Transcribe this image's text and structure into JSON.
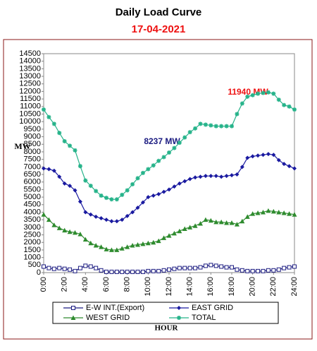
{
  "chart_data": {
    "type": "line",
    "title": "Daily Load Curve",
    "subtitle": "17-04-2021",
    "y_label": "MW",
    "x_label": "HOUR",
    "annotations": [
      {
        "text": "8237 MW",
        "color": "#1a1a80"
      },
      {
        "text": "11940 MW",
        "color": "#ee1111"
      }
    ],
    "x": [
      0,
      0.5,
      1,
      1.5,
      2,
      2.5,
      3,
      3.5,
      4,
      4.5,
      5,
      5.5,
      6,
      6.5,
      7,
      7.5,
      8,
      8.5,
      9,
      9.5,
      10,
      10.5,
      11,
      11.5,
      12,
      12.5,
      13,
      13.5,
      14,
      14.5,
      15,
      15.5,
      16,
      16.5,
      17,
      17.5,
      18,
      18.5,
      19,
      19.5,
      20,
      20.5,
      21,
      21.5,
      22,
      22.5,
      23,
      23.5,
      24
    ],
    "xlim": [
      0,
      24
    ],
    "xticks": [
      {
        "value": 0,
        "label": "0:00"
      },
      {
        "value": 2,
        "label": "2:00"
      },
      {
        "value": 4,
        "label": "4:00"
      },
      {
        "value": 6,
        "label": "6:00"
      },
      {
        "value": 8,
        "label": "8:00"
      },
      {
        "value": 10,
        "label": "10:00"
      },
      {
        "value": 12,
        "label": "12:00"
      },
      {
        "value": 14,
        "label": "14:00"
      },
      {
        "value": 16,
        "label": "16:00"
      },
      {
        "value": 18,
        "label": "18:00"
      },
      {
        "value": 20,
        "label": "20:00"
      },
      {
        "value": 22,
        "label": "22:00"
      },
      {
        "value": 24,
        "label": "24:00"
      }
    ],
    "ylim": [
      0,
      14500
    ],
    "yticks": [
      0,
      500,
      1000,
      1500,
      2000,
      2500,
      3000,
      3500,
      4000,
      4500,
      5000,
      5500,
      6000,
      6500,
      7000,
      7500,
      8000,
      8500,
      9000,
      9500,
      10000,
      10500,
      11000,
      11500,
      12000,
      12500,
      13000,
      13500,
      14000,
      14500
    ],
    "grid": false,
    "series": [
      {
        "name": "E-W INT.(Export)",
        "color": "#1a1a80",
        "marker": "square",
        "values": [
          400,
          300,
          250,
          300,
          250,
          200,
          100,
          300,
          450,
          400,
          300,
          150,
          50,
          50,
          50,
          50,
          50,
          50,
          50,
          50,
          100,
          100,
          100,
          150,
          200,
          250,
          300,
          300,
          300,
          300,
          350,
          450,
          500,
          450,
          400,
          350,
          350,
          200,
          150,
          100,
          100,
          100,
          100,
          150,
          150,
          200,
          300,
          350,
          400
        ]
      },
      {
        "name": "EAST GRID",
        "color": "#1a1aa0",
        "marker": "diamond",
        "values": [
          6900,
          6850,
          6750,
          6350,
          5900,
          5750,
          5450,
          4700,
          4000,
          3850,
          3700,
          3600,
          3500,
          3400,
          3400,
          3500,
          3750,
          4000,
          4300,
          4650,
          5000,
          5100,
          5200,
          5350,
          5500,
          5700,
          5900,
          6050,
          6200,
          6300,
          6350,
          6400,
          6400,
          6400,
          6350,
          6400,
          6450,
          6500,
          7000,
          7600,
          7700,
          7750,
          7800,
          7850,
          7800,
          7450,
          7200,
          7050,
          6900
        ]
      },
      {
        "name": "WEST GRID",
        "color": "#2e8b2e",
        "marker": "triangle",
        "values": [
          3850,
          3500,
          3150,
          2950,
          2800,
          2700,
          2650,
          2550,
          2200,
          1950,
          1800,
          1700,
          1550,
          1500,
          1500,
          1600,
          1700,
          1800,
          1850,
          1900,
          1950,
          2000,
          2100,
          2300,
          2450,
          2600,
          2750,
          2900,
          3000,
          3100,
          3250,
          3500,
          3450,
          3350,
          3350,
          3300,
          3300,
          3200,
          3400,
          3700,
          3900,
          3950,
          4000,
          4100,
          4050,
          4000,
          3950,
          3900,
          3850
        ]
      },
      {
        "name": "TOTAL",
        "color": "#26b38a",
        "marker": "star",
        "values": [
          10800,
          10300,
          9850,
          9250,
          8700,
          8400,
          8100,
          7050,
          6100,
          5750,
          5400,
          5100,
          4950,
          4850,
          4850,
          5150,
          5450,
          5850,
          6250,
          6600,
          6850,
          7100,
          7400,
          7650,
          7950,
          8250,
          8600,
          8950,
          9300,
          9550,
          9850,
          9800,
          9750,
          9700,
          9700,
          9700,
          9700,
          10500,
          11200,
          11650,
          11750,
          11850,
          11900,
          11940,
          11850,
          11450,
          11100,
          11000,
          10800
        ]
      }
    ]
  }
}
